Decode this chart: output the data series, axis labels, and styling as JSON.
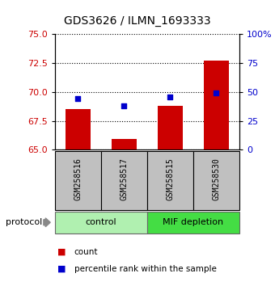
{
  "title": "GDS3626 / ILMN_1693333",
  "samples": [
    "GSM258516",
    "GSM258517",
    "GSM258515",
    "GSM258530"
  ],
  "bar_values": [
    68.5,
    65.9,
    68.8,
    72.7
  ],
  "percentile_values": [
    44,
    38,
    46,
    49
  ],
  "bar_color": "#CC0000",
  "dot_color": "#0000CC",
  "ylim_left": [
    65,
    75
  ],
  "ylim_right": [
    0,
    100
  ],
  "yticks_left": [
    65,
    67.5,
    70,
    72.5,
    75
  ],
  "yticks_right": [
    0,
    25,
    50,
    75,
    100
  ],
  "ytick_labels_right": [
    "0",
    "25",
    "50",
    "75",
    "100%"
  ],
  "ctrl_color": "#B0F0B0",
  "mif_color": "#44DD44",
  "bar_bottom": 65,
  "bar_width": 0.55,
  "sample_box_color": "#C0C0C0",
  "protocol_label": "protocol",
  "legend_count": "count",
  "legend_pct": "percentile rank within the sample"
}
